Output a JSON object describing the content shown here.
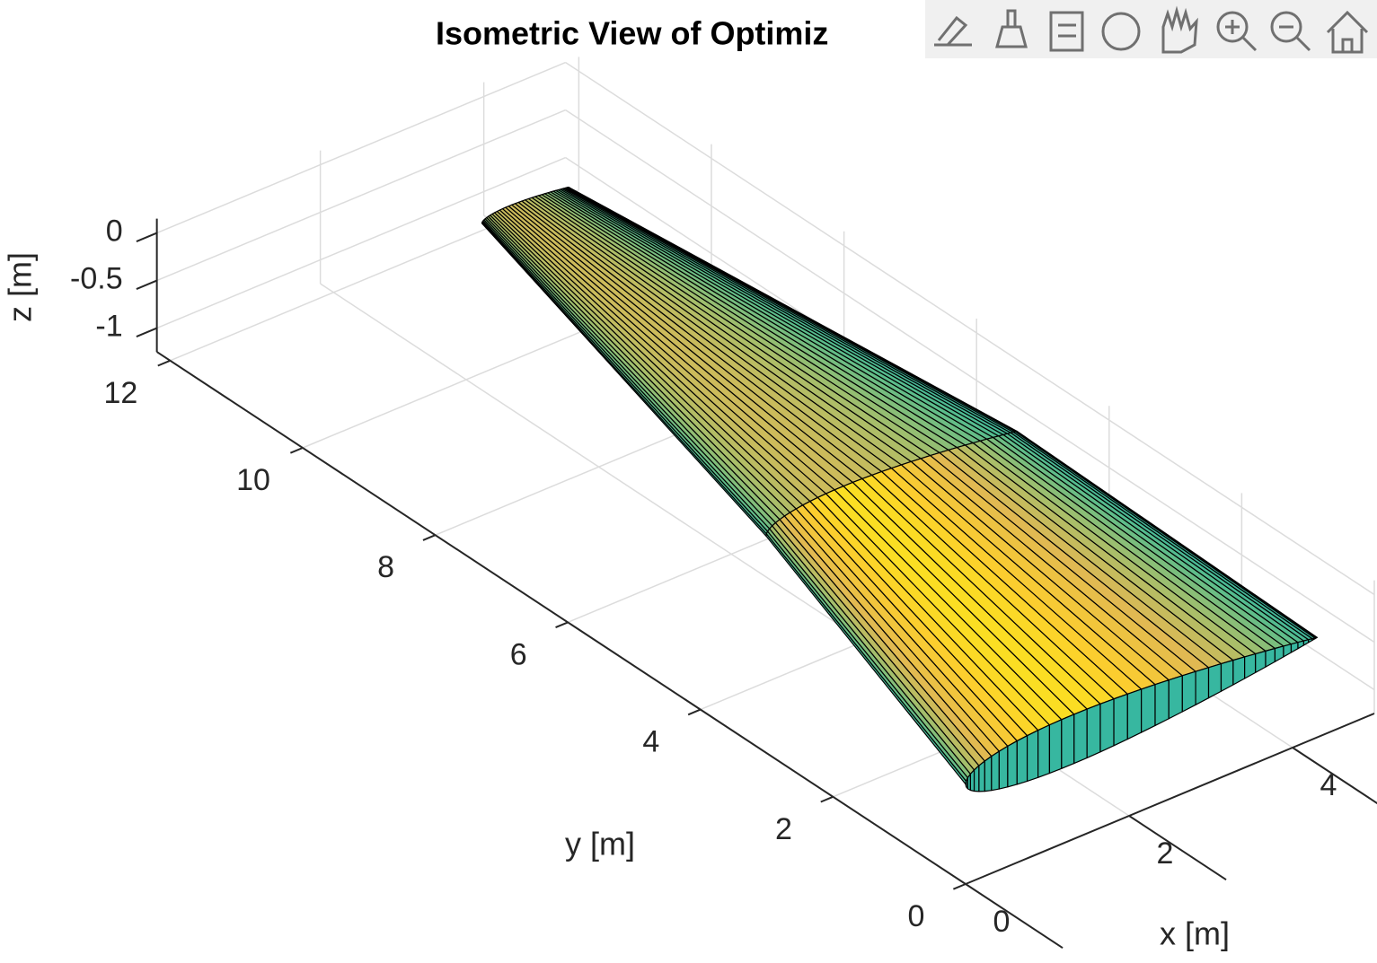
{
  "chart_data": {
    "type": "surface3d",
    "title": "Isometric View of Optimiz",
    "xlabel": "x [m]",
    "ylabel": "y [m]",
    "zlabel": "z [m]",
    "xlim": [
      0,
      5
    ],
    "ylim": [
      0,
      12.2
    ],
    "zlim": [
      -1.25,
      0.15
    ],
    "xticks": [
      0,
      2,
      4
    ],
    "yticks": [
      0,
      2,
      4,
      6,
      8,
      10,
      12
    ],
    "zticks": [
      -1,
      -0.5,
      0
    ],
    "grid": true,
    "sections": [
      {
        "y": 0,
        "x_le": 0,
        "x_te": 4.3,
        "z": -0.2
      },
      {
        "y": 4.65,
        "x_le": 1.33,
        "x_te": 4.4,
        "z": -0.2
      },
      {
        "y": 10.7,
        "x_le": 2.76,
        "x_te": 3.82,
        "z": -0.2
      }
    ],
    "thickness_ratio": 0.12,
    "edge_color": "#000000",
    "colormap": [
      "#352a87",
      "#0f5cdd",
      "#127dd8",
      "#079ccf",
      "#15b1b4",
      "#59bd8c",
      "#a5be6b",
      "#e1b952",
      "#fcce2e",
      "#f9fb0e"
    ]
  }
}
